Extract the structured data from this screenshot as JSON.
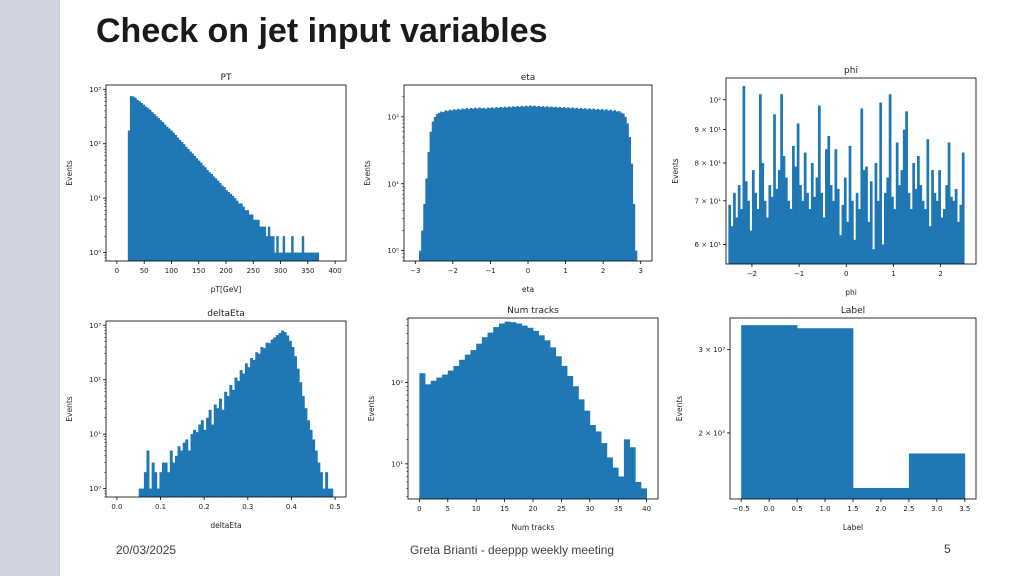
{
  "slide": {
    "title": "Check on jet input variables",
    "footer": {
      "date": "20/03/2025",
      "center": "Greta Brianti - deeppp weekly meeting",
      "page": "5"
    }
  },
  "colors": {
    "bar": "#1f77b4",
    "decoration": "#cfd3e0"
  },
  "chart_data": [
    {
      "type": "bar",
      "title": "PT",
      "xlabel": "pT[GeV]",
      "ylabel": "Events",
      "xlim": [
        -20,
        420
      ],
      "ylim": [
        0.7,
        1200
      ],
      "yscale": "log",
      "xticks": [
        0,
        50,
        100,
        150,
        200,
        250,
        300,
        350,
        400
      ],
      "xticklabels": [
        "0",
        "50",
        "100",
        "150",
        "200",
        "250",
        "300",
        "350",
        "400"
      ],
      "yticks": [
        1,
        10,
        100,
        1000
      ],
      "yticklabels": [
        "10⁰",
        "10¹",
        "10²",
        "10³"
      ],
      "bin_edges": [
        20,
        370
      ],
      "values": [
        175,
        750,
        740,
        700,
        640,
        600,
        560,
        520,
        480,
        450,
        420,
        380,
        350,
        320,
        295,
        270,
        250,
        225,
        205,
        190,
        175,
        160,
        145,
        130,
        118,
        108,
        98,
        88,
        80,
        72,
        66,
        60,
        54,
        49,
        45,
        40,
        37,
        33,
        30,
        28,
        25,
        23,
        21,
        19,
        17,
        16,
        14,
        13,
        12,
        11,
        10,
        9,
        8,
        8,
        7,
        6,
        6,
        5,
        5,
        4,
        4,
        4,
        3,
        3,
        3,
        2,
        3,
        2,
        2,
        1,
        2,
        1,
        1,
        2,
        1,
        1,
        1,
        2,
        1,
        1,
        1,
        1,
        2,
        1,
        1,
        1,
        1,
        1,
        1,
        1
      ]
    },
    {
      "type": "bar",
      "title": "eta",
      "xlabel": "eta",
      "ylabel": "Events",
      "xlim": [
        -3.3,
        3.3
      ],
      "ylim": [
        0.7,
        300
      ],
      "yscale": "log",
      "xticks": [
        -3,
        -2,
        -1,
        0,
        1,
        2,
        3
      ],
      "xticklabels": [
        "−3",
        "−2",
        "−1",
        "0",
        "1",
        "2",
        "3"
      ],
      "yticks": [
        1,
        10,
        100
      ],
      "yticklabels": [
        "10⁰",
        "10¹",
        "10²"
      ],
      "bin_edges": [
        -2.9,
        2.9
      ],
      "values": [
        1,
        2,
        5,
        12,
        30,
        60,
        85,
        100,
        110,
        115,
        120,
        118,
        125,
        122,
        128,
        125,
        130,
        127,
        132,
        128,
        133,
        130,
        135,
        131,
        136,
        132,
        137,
        133,
        138,
        134,
        136,
        132,
        138,
        135,
        139,
        134,
        140,
        136,
        141,
        137,
        142,
        138,
        143,
        139,
        144,
        140,
        145,
        141,
        146,
        142,
        147,
        143,
        148,
        144,
        147,
        142,
        146,
        141,
        145,
        140,
        144,
        139,
        143,
        138,
        142,
        137,
        141,
        136,
        140,
        135,
        139,
        134,
        138,
        133,
        137,
        132,
        136,
        131,
        135,
        130,
        134,
        129,
        133,
        128,
        132,
        127,
        131,
        126,
        130,
        124,
        128,
        122,
        126,
        120,
        122,
        116,
        112,
        100,
        80,
        50,
        20,
        5,
        1
      ]
    },
    {
      "type": "bar",
      "title": "phi",
      "xlabel": "phi",
      "ylabel": "Events",
      "xlim": [
        -2.55,
        2.75
      ],
      "ylim": [
        56,
        108
      ],
      "yscale": "log",
      "xticks": [
        -2,
        -1,
        0,
        1,
        2
      ],
      "xticklabels": [
        "−2",
        "−1",
        "0",
        "1",
        "2"
      ],
      "yticks": [
        60,
        70,
        80,
        90,
        100
      ],
      "yticklabels": [
        "6 × 10¹",
        "7 × 10¹",
        "8 × 10¹",
        "9 × 10¹",
        "10²"
      ],
      "bin_edges": [
        -2.5,
        2.5
      ],
      "values": [
        69,
        64,
        72,
        66,
        74,
        68,
        105,
        75,
        70,
        63,
        78,
        72,
        68,
        102,
        80,
        70,
        66,
        74,
        71,
        95,
        73,
        78,
        102,
        82,
        76,
        70,
        68,
        85,
        79,
        92,
        74,
        70,
        83,
        72,
        68,
        80,
        71,
        76,
        98,
        72,
        66,
        84,
        88,
        74,
        70,
        84,
        73,
        62,
        69,
        76,
        65,
        85,
        70,
        61,
        72,
        68,
        97,
        78,
        79,
        65,
        75,
        59,
        80,
        70,
        99,
        60,
        72,
        76,
        102,
        71,
        68,
        86,
        74,
        78,
        90,
        96,
        72,
        68,
        80,
        73,
        82,
        74,
        70,
        68,
        87,
        64,
        78,
        72,
        70,
        78,
        66,
        68,
        74,
        86,
        71,
        70,
        73,
        65,
        69,
        83
      ]
    },
    {
      "type": "bar",
      "title": "deltaEta",
      "xlabel": "deltaEta",
      "ylabel": "Events",
      "xlim": [
        -0.025,
        0.525
      ],
      "ylim": [
        0.7,
        1200
      ],
      "yscale": "log",
      "xticks": [
        0.0,
        0.1,
        0.2,
        0.3,
        0.4,
        0.5
      ],
      "xticklabels": [
        "0.0",
        "0.1",
        "0.2",
        "0.3",
        "0.4",
        "0.5"
      ],
      "yticks": [
        1,
        10,
        100,
        1000
      ],
      "yticklabels": [
        "10⁰",
        "10¹",
        "10²",
        "10³"
      ],
      "bin_edges": [
        0.05,
        0.495
      ],
      "values": [
        1,
        1,
        2,
        5,
        1,
        3,
        2,
        1,
        2,
        3,
        3,
        2,
        5,
        3,
        4,
        6,
        5,
        7,
        8,
        5,
        10,
        12,
        11,
        15,
        18,
        12,
        20,
        28,
        15,
        35,
        30,
        45,
        28,
        60,
        50,
        80,
        65,
        110,
        95,
        150,
        130,
        200,
        170,
        250,
        230,
        320,
        300,
        400,
        380,
        480,
        470,
        550,
        600,
        660,
        720,
        800,
        750,
        650,
        520,
        400,
        270,
        160,
        90,
        50,
        30,
        18,
        12,
        8,
        5,
        3,
        2,
        1,
        2,
        1,
        1
      ]
    },
    {
      "type": "bar",
      "title": "Num tracks",
      "xlabel": "Num tracks",
      "ylabel": "Events",
      "xlim": [
        -2,
        42
      ],
      "ylim": [
        3.7,
        620
      ],
      "yscale": "log",
      "xticks": [
        0,
        5,
        10,
        15,
        20,
        25,
        30,
        35,
        40
      ],
      "xticklabels": [
        "0",
        "5",
        "10",
        "15",
        "20",
        "25",
        "30",
        "35",
        "40"
      ],
      "yticks": [
        10,
        100
      ],
      "yticklabels": [
        "10¹",
        "10²"
      ],
      "bin_edges": [
        0,
        40
      ],
      "values": [
        130,
        95,
        105,
        115,
        125,
        140,
        160,
        190,
        220,
        250,
        300,
        360,
        410,
        480,
        530,
        560,
        550,
        530,
        500,
        470,
        430,
        380,
        330,
        270,
        210,
        160,
        120,
        90,
        62,
        45,
        30,
        25,
        18,
        12,
        9,
        7,
        20,
        16,
        6,
        5
      ]
    },
    {
      "type": "bar",
      "title": "Label",
      "xlabel": "Label",
      "ylabel": "Events",
      "xlim": [
        -0.7,
        3.7
      ],
      "ylim": [
        1450,
        3500
      ],
      "yscale": "log",
      "xticks": [
        -0.5,
        0.0,
        0.5,
        1.0,
        1.5,
        2.0,
        2.5,
        3.0,
        3.5
      ],
      "xticklabels": [
        "−0.5",
        "0.0",
        "0.5",
        "1.0",
        "1.5",
        "2.0",
        "2.5",
        "3.0",
        "3.5"
      ],
      "yticks": [
        2000,
        3000
      ],
      "yticklabels": [
        "2 × 10³",
        "3 × 10³"
      ],
      "bin_edges": [
        -0.5,
        3.5
      ],
      "values": [
        3380,
        3330,
        1530,
        1810
      ]
    }
  ]
}
